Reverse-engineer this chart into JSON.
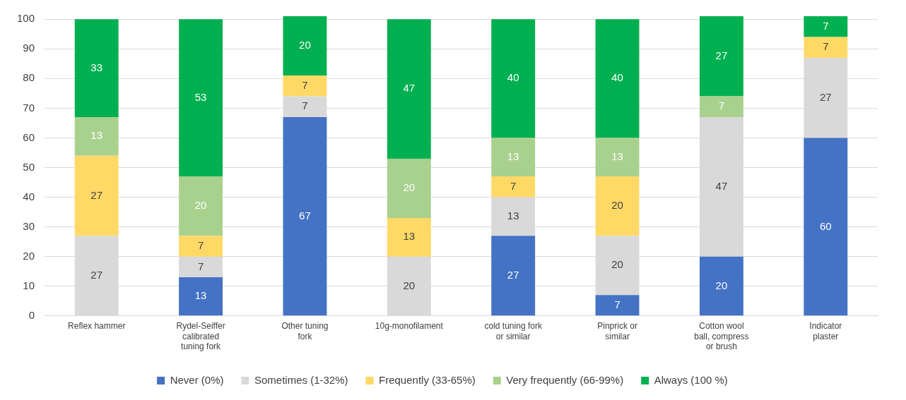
{
  "chart_data": {
    "type": "bar",
    "stacked": true,
    "categories": [
      "Reflex hammer",
      "Rydel-Seiffer calibrated tuning fork",
      "Other tuning fork",
      "10g-monofilament",
      "cold tuning fork or similar",
      "Pinprick or similar",
      "Cotton wool ball, compress or brush",
      "Indicator plaster"
    ],
    "series": [
      {
        "name": "Never (0%)",
        "color": "#4472c4",
        "values": [
          0,
          13,
          67,
          0,
          27,
          7,
          20,
          60
        ],
        "value_labels": [
          null,
          "13",
          "67",
          null,
          "27",
          "7",
          "20",
          "60"
        ]
      },
      {
        "name": "Sometimes (1-32%)",
        "color": "#d9d9d9",
        "values": [
          27,
          7,
          7,
          20,
          13,
          20,
          47,
          27
        ],
        "value_labels": [
          "27",
          "7",
          "7",
          "20",
          "13",
          "20",
          "47",
          "27"
        ]
      },
      {
        "name": "Frequently (33-65%)",
        "color": "#ffd966",
        "values": [
          27,
          7,
          7,
          13,
          7,
          20,
          0,
          7
        ],
        "value_labels": [
          "27",
          "7",
          "7",
          "13",
          "7",
          "20",
          null,
          "7"
        ]
      },
      {
        "name": "Very frequently (66-99%)",
        "color": "#a9d18e",
        "values": [
          13,
          20,
          0,
          20,
          13,
          13,
          7,
          0
        ],
        "value_labels": [
          "13",
          "20",
          null,
          "20",
          "13",
          "13",
          "7",
          null
        ]
      },
      {
        "name": "Always (100 %)",
        "color": "#00b050",
        "values": [
          33,
          53,
          20,
          47,
          40,
          40,
          27,
          7
        ],
        "value_labels": [
          "33",
          "53",
          "20",
          "47",
          "40",
          "40",
          "27",
          "7"
        ]
      }
    ],
    "ylim": [
      0,
      101
    ],
    "yticks": [
      0,
      10,
      20,
      30,
      40,
      50,
      60,
      70,
      80,
      90,
      100
    ],
    "grid": "y",
    "legend": "bottom"
  }
}
